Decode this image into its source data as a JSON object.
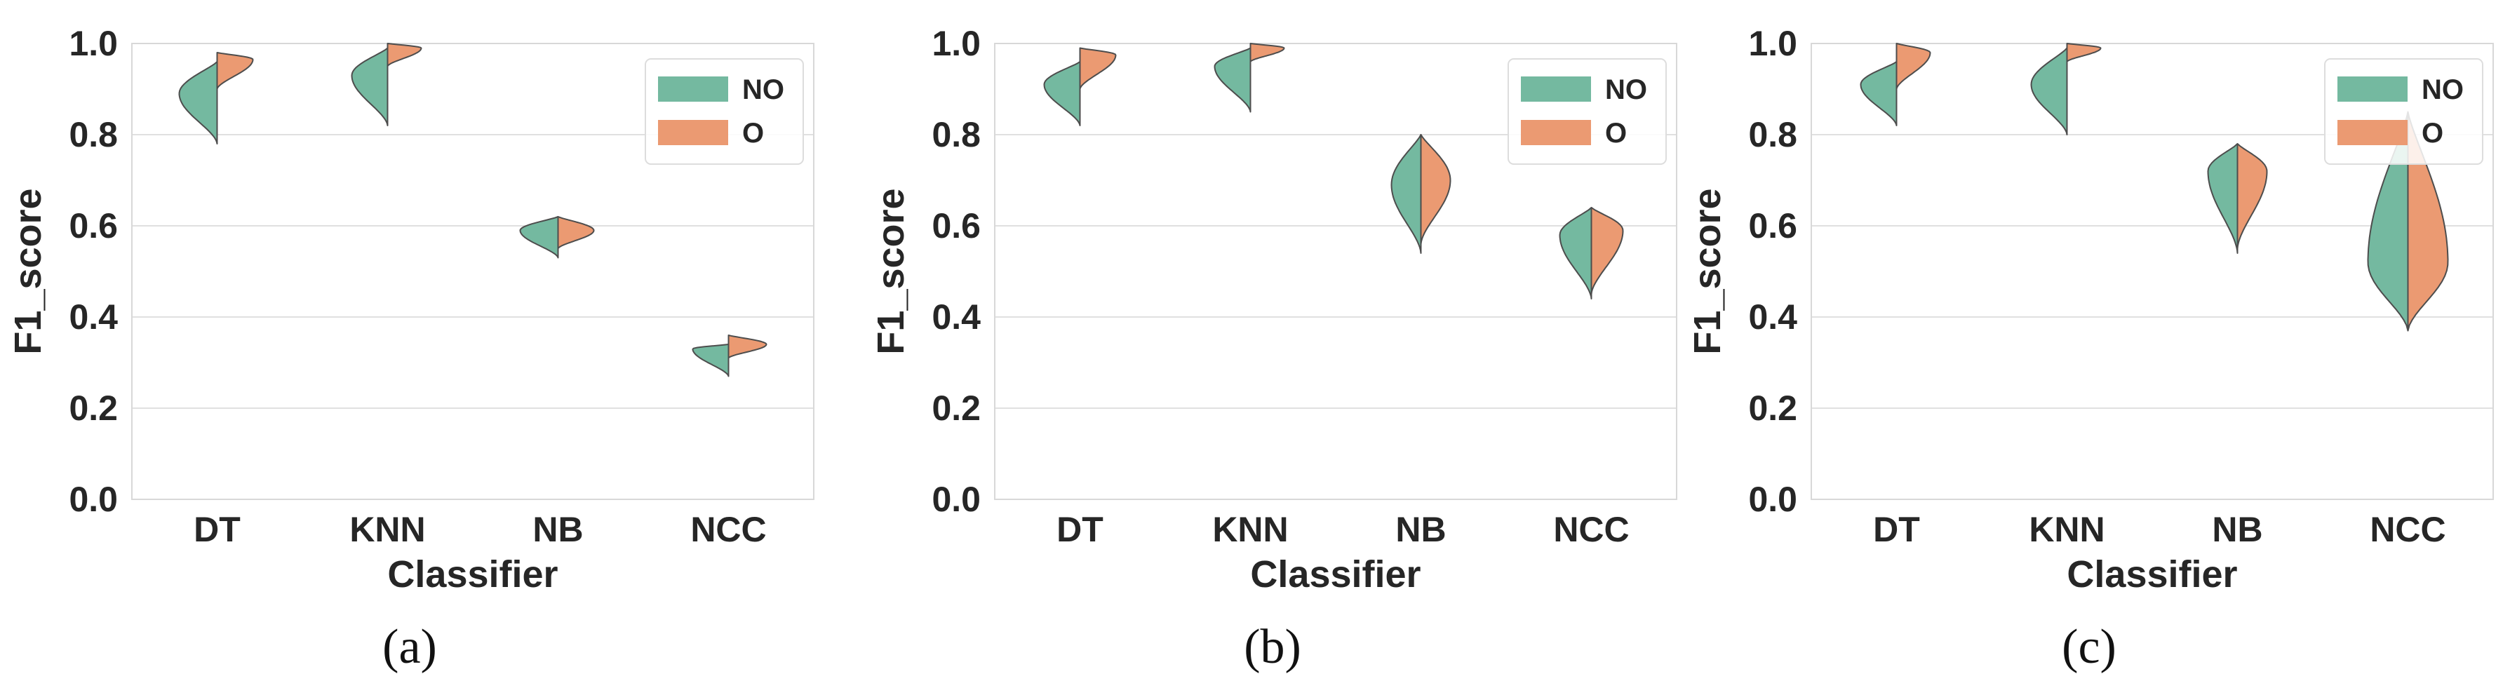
{
  "colors": {
    "NO": "#74b9a0",
    "O": "#eb9a72",
    "grid": "#e0e0e0",
    "spine": "#d8d8d8",
    "outline": "#4d4d4d"
  },
  "chart_data": [
    {
      "type": "violin",
      "panel_label": "(a)",
      "xlabel": "Classifier",
      "ylabel": "F1_score",
      "ylim": [
        0.0,
        1.0
      ],
      "yticks": [
        "0.0",
        "0.2",
        "0.4",
        "0.6",
        "0.8",
        "1.0"
      ],
      "categories": [
        "DT",
        "KNN",
        "NB",
        "NCC"
      ],
      "legend": {
        "position": "top-right",
        "entries": [
          "NO",
          "O"
        ]
      },
      "series": [
        {
          "name": "NO",
          "violins": [
            {
              "min": 0.78,
              "max": 0.96,
              "median": 0.89,
              "spread": 0.9
            },
            {
              "min": 0.82,
              "max": 0.99,
              "median": 0.93,
              "spread": 0.85
            },
            {
              "min": 0.53,
              "max": 0.62,
              "median": 0.59,
              "spread": 0.9
            },
            {
              "min": 0.27,
              "max": 0.34,
              "median": 0.33,
              "spread": 0.85
            }
          ]
        },
        {
          "name": "O",
          "violins": [
            {
              "min": 0.9,
              "max": 0.98,
              "median": 0.965,
              "spread": 0.85
            },
            {
              "min": 0.95,
              "max": 1.0,
              "median": 0.99,
              "spread": 0.8
            },
            {
              "min": 0.55,
              "max": 0.62,
              "median": 0.59,
              "spread": 0.85
            },
            {
              "min": 0.31,
              "max": 0.36,
              "median": 0.34,
              "spread": 0.9
            }
          ]
        }
      ]
    },
    {
      "type": "violin",
      "panel_label": "(b)",
      "xlabel": "Classifier",
      "ylabel": "F1_score",
      "ylim": [
        0.0,
        1.0
      ],
      "yticks": [
        "0.0",
        "0.2",
        "0.4",
        "0.6",
        "0.8",
        "1.0"
      ],
      "categories": [
        "DT",
        "KNN",
        "NB",
        "NCC"
      ],
      "legend": {
        "position": "top-right",
        "entries": [
          "NO",
          "O"
        ]
      },
      "series": [
        {
          "name": "NO",
          "violins": [
            {
              "min": 0.82,
              "max": 0.96,
              "median": 0.91,
              "spread": 0.85
            },
            {
              "min": 0.85,
              "max": 0.99,
              "median": 0.95,
              "spread": 0.85
            },
            {
              "min": 0.54,
              "max": 0.8,
              "median": 0.69,
              "spread": 0.7
            },
            {
              "min": 0.44,
              "max": 0.64,
              "median": 0.58,
              "spread": 0.75
            }
          ]
        },
        {
          "name": "O",
          "violins": [
            {
              "min": 0.9,
              "max": 0.99,
              "median": 0.975,
              "spread": 0.85
            },
            {
              "min": 0.96,
              "max": 1.0,
              "median": 0.99,
              "spread": 0.8
            },
            {
              "min": 0.56,
              "max": 0.8,
              "median": 0.7,
              "spread": 0.7
            },
            {
              "min": 0.45,
              "max": 0.64,
              "median": 0.59,
              "spread": 0.75
            }
          ]
        }
      ]
    },
    {
      "type": "violin",
      "panel_label": "(c)",
      "xlabel": "Classifier",
      "ylabel": "F1_score",
      "ylim": [
        0.0,
        1.0
      ],
      "yticks": [
        "0.0",
        "0.2",
        "0.4",
        "0.6",
        "0.8",
        "1.0"
      ],
      "categories": [
        "DT",
        "KNN",
        "NB",
        "NCC"
      ],
      "legend": {
        "position": "top-right",
        "entries": [
          "NO",
          "O"
        ]
      },
      "series": [
        {
          "name": "NO",
          "violins": [
            {
              "min": 0.82,
              "max": 0.96,
              "median": 0.91,
              "spread": 0.85
            },
            {
              "min": 0.8,
              "max": 0.99,
              "median": 0.91,
              "spread": 0.85
            },
            {
              "min": 0.54,
              "max": 0.78,
              "median": 0.72,
              "spread": 0.7
            },
            {
              "min": 0.37,
              "max": 0.85,
              "median": 0.52,
              "spread": 0.95
            }
          ]
        },
        {
          "name": "O",
          "violins": [
            {
              "min": 0.9,
              "max": 1.0,
              "median": 0.98,
              "spread": 0.8
            },
            {
              "min": 0.96,
              "max": 1.0,
              "median": 0.99,
              "spread": 0.8
            },
            {
              "min": 0.55,
              "max": 0.78,
              "median": 0.72,
              "spread": 0.7
            },
            {
              "min": 0.37,
              "max": 0.85,
              "median": 0.52,
              "spread": 0.95
            }
          ]
        }
      ]
    }
  ]
}
